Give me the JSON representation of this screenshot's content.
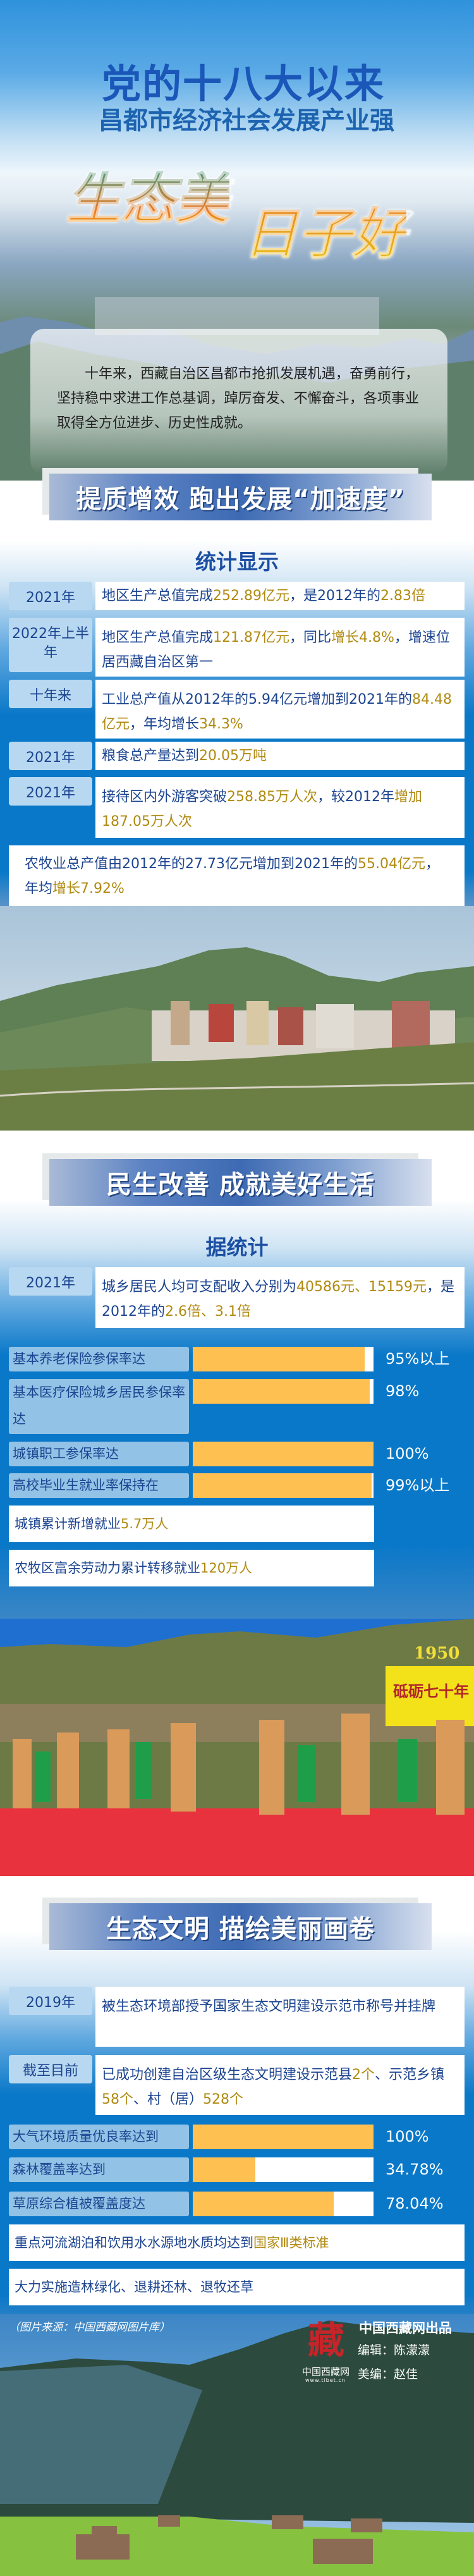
{
  "header": {
    "title": "党的十八大以来",
    "subtitle": "昌都市经济社会发展产业强",
    "slogan_1": "生态美",
    "slogan_2": "日子好"
  },
  "intro": "十年来，西藏自治区昌都市抢抓发展机遇，奋勇前行，坚持稳中求进工作总基调，踔厉奋发、不懈奋斗，各项事业取得全方位进步、历史性成就。",
  "section1": {
    "banner": "提质增效 跑出发展“加速度”",
    "subtitle": "统计显示",
    "rows": [
      {
        "label": "2021年",
        "segments": [
          {
            "t": "地区生产总值完成"
          },
          {
            "t": "252.89亿元",
            "hl": true
          },
          {
            "t": "，是2012年的"
          },
          {
            "t": "2.83倍",
            "hl": true
          }
        ]
      },
      {
        "label": "2022年上半年",
        "segments": [
          {
            "t": "地区生产总值完成"
          },
          {
            "t": "121.87亿元",
            "hl": true
          },
          {
            "t": "，同比"
          },
          {
            "t": "增长4.8%",
            "hl": true
          },
          {
            "t": "，增速位居西藏自治区第一"
          }
        ]
      },
      {
        "label": "十年来",
        "segments": [
          {
            "t": "工业总产值从2012年的5.94亿元增加到2021年的"
          },
          {
            "t": "84.48亿元",
            "hl": true
          },
          {
            "t": "，年均增长"
          },
          {
            "t": "34.3%",
            "hl": true
          }
        ]
      },
      {
        "label": "2021年",
        "segments": [
          {
            "t": "粮食总产量达到"
          },
          {
            "t": "20.05万吨",
            "hl": true
          }
        ]
      },
      {
        "label": "2021年",
        "segments": [
          {
            "t": "接待区内外游客突破"
          },
          {
            "t": "258.85万人次",
            "hl": true
          },
          {
            "t": "，较2012年"
          },
          {
            "t": "增加187.05万人次",
            "hl": true
          }
        ]
      }
    ],
    "wide": {
      "segments": [
        {
          "t": "农牧业总产值由2012年的27.73亿元增加到2021年的"
        },
        {
          "t": "55.04亿元",
          "hl": true
        },
        {
          "t": "，年均"
        },
        {
          "t": "增长7.92%",
          "hl": true
        }
      ]
    }
  },
  "section2": {
    "banner": "民生改善 成就美好生活",
    "subtitle": "据统计",
    "row": {
      "label": "2021年",
      "segments": [
        {
          "t": "城乡居民人均可支配收入分别为"
        },
        {
          "t": "40586元、15159元",
          "hl": true
        },
        {
          "t": "，是2012年的"
        },
        {
          "t": "2.6倍、3.1倍",
          "hl": true
        }
      ]
    },
    "bars": [
      {
        "label": "基本养老保险参保率达",
        "value": "95%以上",
        "fill": 95
      },
      {
        "label": "基本医疗保险城乡居民参保率达",
        "value": "98%",
        "fill": 98
      },
      {
        "label": "城镇职工参保率达",
        "value": "100%",
        "fill": 100
      },
      {
        "label": "高校毕业生就业率保持在",
        "value": "99%以上",
        "fill": 99
      }
    ],
    "notes": [
      {
        "segments": [
          {
            "t": "城镇累计新增就业"
          },
          {
            "t": "5.7万人",
            "hl": true
          }
        ]
      },
      {
        "segments": [
          {
            "t": "农牧区富余劳动力累计转移就业"
          },
          {
            "t": "120万人",
            "hl": true
          }
        ]
      }
    ],
    "photo_sign": {
      "year": "1950",
      "text": "砥砺七十年"
    }
  },
  "section3": {
    "banner": "生态文明 描绘美丽画卷",
    "rows": [
      {
        "label": "2019年",
        "segments": [
          {
            "t": "被生态环境部授予国家生态文明建设示范市称号并挂牌"
          }
        ]
      },
      {
        "label": "截至目前",
        "segments": [
          {
            "t": "已成功创建自治区级生态文明建设示范县"
          },
          {
            "t": "2个",
            "hl": true
          },
          {
            "t": "、示范乡镇"
          },
          {
            "t": "58个",
            "hl": true
          },
          {
            "t": "、村（居）"
          },
          {
            "t": "528个",
            "hl": true
          }
        ]
      }
    ],
    "bars": [
      {
        "label": "大气环境质量优良率达到",
        "value": "100%",
        "fill": 100
      },
      {
        "label": "森林覆盖率达到",
        "value": "34.78%",
        "fill": 34.78
      },
      {
        "label": "草原综合植被覆盖度达",
        "value": "78.04%",
        "fill": 78.04
      }
    ],
    "wide": [
      {
        "segments": [
          {
            "t": "重点河流湖泊和饮用水水源地水质均达到"
          },
          {
            "t": "国家Ⅲ类标准",
            "hl": true
          }
        ]
      },
      {
        "segments": [
          {
            "t": "大力实施造林绿化、退耕还林、退牧还草"
          }
        ]
      }
    ]
  },
  "footer": {
    "source": "（图片来源：中国西藏网图片库）",
    "publisher": "中国西藏网出品",
    "editor": "编辑：陈濛濛",
    "designer": "美编：赵佳",
    "logo_text": "中国西藏网",
    "logo_url": "www.tibet.cn"
  },
  "colors": {
    "accent_blue": "#0a78c8",
    "highlight_gold": "#b08a10",
    "bar_fill": "#ffc052",
    "label_bg": "#92c3e6",
    "text_blue": "#1c4490"
  }
}
